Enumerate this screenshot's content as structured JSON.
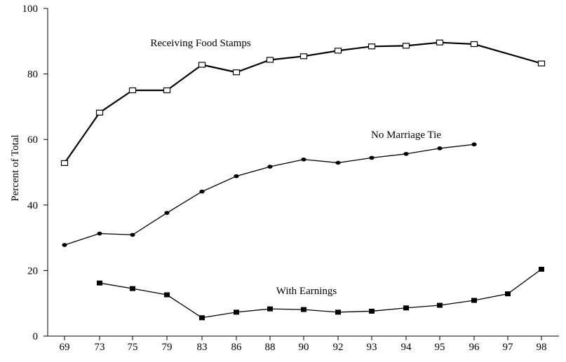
{
  "chart_data": {
    "type": "line",
    "title": "",
    "xlabel": "",
    "ylabel": "Percent of Total",
    "categories": [
      "69",
      "73",
      "75",
      "79",
      "83",
      "86",
      "88",
      "90",
      "92",
      "93",
      "94",
      "95",
      "96",
      "97",
      "98"
    ],
    "ylim": [
      0,
      100
    ],
    "yticks": [
      0,
      20,
      40,
      60,
      80,
      100
    ],
    "series": [
      {
        "name": "Receiving Food Stamps",
        "marker": "open-square",
        "values": [
          52.8,
          68.2,
          75.0,
          75.0,
          82.8,
          80.5,
          84.3,
          85.4,
          87.1,
          88.4,
          88.6,
          89.6,
          89.1,
          null,
          83.2
        ]
      },
      {
        "name": "No Marriage Tie",
        "marker": "filled-circle",
        "values": [
          27.8,
          31.3,
          30.9,
          37.6,
          44.1,
          48.8,
          51.7,
          53.9,
          52.9,
          54.4,
          55.6,
          57.3,
          58.5,
          null,
          null
        ]
      },
      {
        "name": "With Earnings",
        "marker": "filled-square",
        "values": [
          null,
          16.2,
          14.5,
          12.6,
          5.6,
          7.3,
          8.3,
          8.1,
          7.3,
          7.6,
          8.6,
          9.4,
          10.9,
          12.9,
          20.4
        ]
      }
    ]
  }
}
